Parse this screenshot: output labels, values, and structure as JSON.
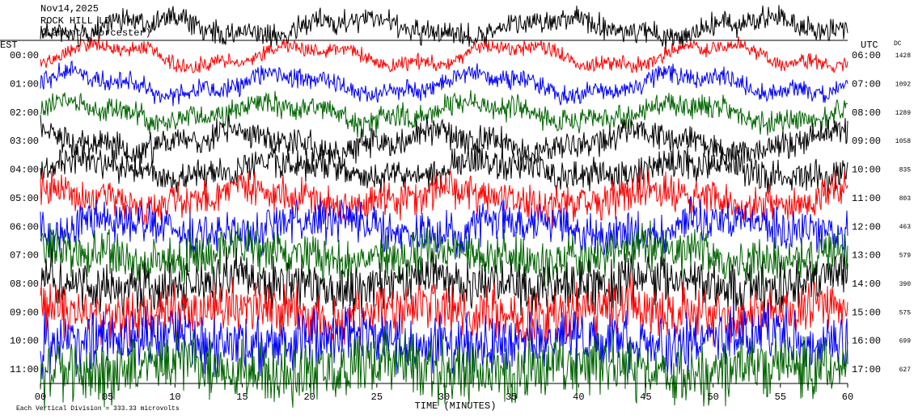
{
  "chart_data": {
    "type": "helicorder",
    "title": "Nov14,2025",
    "subtitle": [
      "ROCK HILL LD",
      "(Lamont, Worcester)"
    ],
    "left_axis_label": "EST",
    "right_axis_label": "UTC",
    "dc_label": "DC",
    "xlabel": "TIME (MINUTES)",
    "footer": "Each Vertical Division = 333.33 microvolts",
    "xlim": [
      0,
      60
    ],
    "xticks": [
      {
        "value": 0,
        "label": "00"
      },
      {
        "value": 5,
        "label": "05"
      },
      10,
      15,
      20,
      25,
      30,
      35,
      40,
      45,
      50,
      55,
      60
    ],
    "rows": [
      {
        "est": "00:00",
        "utc": "06:00",
        "dc": "1428",
        "color": "#ff0000"
      },
      {
        "est": "01:00",
        "utc": "07:00",
        "dc": "1092",
        "color": "#0000ff"
      },
      {
        "est": "02:00",
        "utc": "08:00",
        "dc": "1289",
        "color": "#006400"
      },
      {
        "est": "03:00",
        "utc": "09:00",
        "dc": "1058",
        "color": "#000000"
      },
      {
        "est": "04:00",
        "utc": "10:00",
        "dc": "835",
        "color": "#000000"
      },
      {
        "est": "05:00",
        "utc": "11:00",
        "dc": "803",
        "color": "#ff0000"
      },
      {
        "est": "06:00",
        "utc": "12:00",
        "dc": "463",
        "color": "#0000ff"
      },
      {
        "est": "07:00",
        "utc": "13:00",
        "dc": "579",
        "color": "#006400"
      },
      {
        "est": "08:00",
        "utc": "14:00",
        "dc": "390",
        "color": "#000000"
      },
      {
        "est": "09:00",
        "utc": "15:00",
        "dc": "575",
        "color": "#ff0000"
      },
      {
        "est": "10:00",
        "utc": "16:00",
        "dc": "699",
        "color": "#0000ff"
      },
      {
        "est": "11:00",
        "utc": "17:00",
        "dc": "627",
        "color": "#006400"
      }
    ]
  }
}
